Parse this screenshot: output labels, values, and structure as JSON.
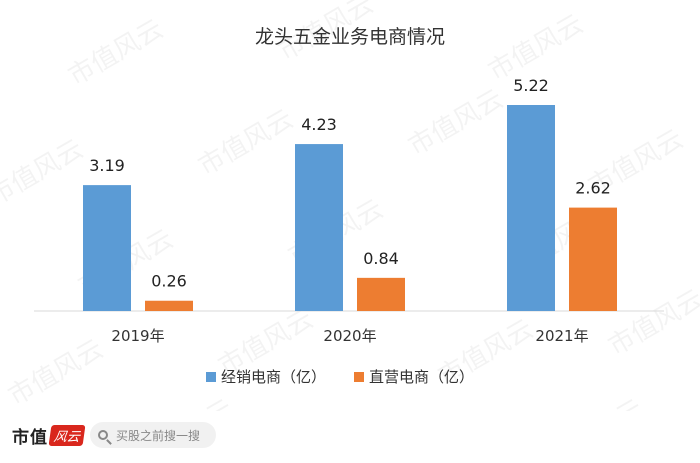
{
  "chart_data": {
    "type": "bar",
    "title": "龙头五金业务电商情况",
    "categories": [
      "2019年",
      "2020年",
      "2021年"
    ],
    "series": [
      {
        "name": "经销电商（亿）",
        "values": [
          3.19,
          4.23,
          5.22
        ],
        "color": "#5b9bd5"
      },
      {
        "name": "直营电商（亿）",
        "values": [
          0.26,
          0.84,
          2.62
        ],
        "color": "#ed7d31"
      }
    ],
    "ylim": [
      0,
      5.22
    ],
    "grid": false,
    "legend_position": "bottom"
  },
  "watermark": {
    "text": "市值风云"
  },
  "footer": {
    "brand_text": "市值",
    "brand_badge": "风云",
    "search_placeholder": "买股之前搜一搜"
  }
}
